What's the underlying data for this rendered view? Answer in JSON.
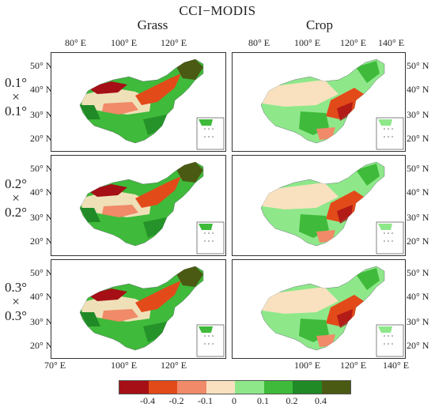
{
  "title": "CCI−MODIS",
  "columns": [
    "Grass",
    "Crop"
  ],
  "rows": [
    {
      "res_top": "0.1°",
      "times": "×",
      "res_bottom": "0.1°"
    },
    {
      "res_top": "0.2°",
      "times": "×",
      "res_bottom": "0.2°"
    },
    {
      "res_top": "0.3°",
      "times": "×",
      "res_bottom": "0.3°"
    }
  ],
  "lat_ticks": [
    "50° N",
    "40° N",
    "30° N",
    "20° N"
  ],
  "lon_ticks_top_left": [
    "80° E",
    "100° E",
    "120° E"
  ],
  "lon_ticks_top_right": [
    "80° E",
    "100° E",
    "120° E",
    "140° E"
  ],
  "lon_ticks_bottom_left": [
    "70° E",
    "100° E",
    "120° E"
  ],
  "lon_ticks_bottom_right": [
    "100° E",
    "120° E",
    "140° E"
  ],
  "colorbar": {
    "labels": [
      "-0.4",
      "-0.2",
      "-0.1",
      "0",
      "0.1",
      "0.2",
      "0.4"
    ],
    "colors": [
      "#a50f15",
      "#e34a1a",
      "#f08a68",
      "#f9e1bf",
      "#8ee88a",
      "#3fba3a",
      "#1f8a26",
      "#4a5a12"
    ]
  }
}
